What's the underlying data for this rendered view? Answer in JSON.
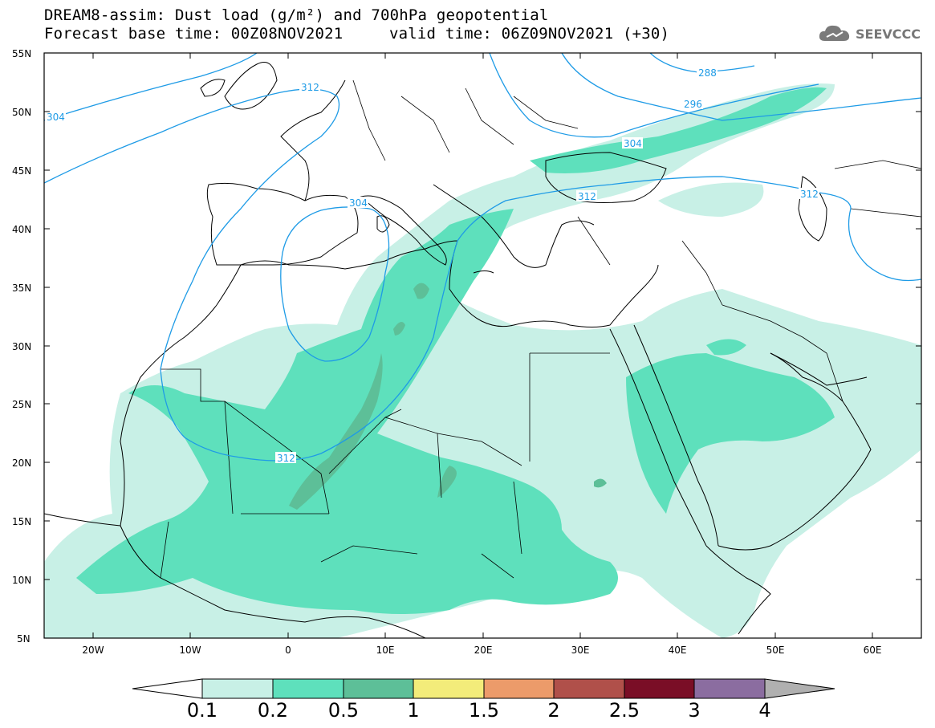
{
  "header": {
    "line1": "DREAM8-assim: Dust load (g/m²) and 700hPa geopotential",
    "line2_base": "Forecast base time: 00Z08NOV2021",
    "line2_valid": "valid time: 06Z09NOV2021 (+30)"
  },
  "logo": {
    "text": "SEEVCCC",
    "icon": "cloud-icon"
  },
  "map": {
    "region": "North Africa, Europe and Middle East",
    "lon_range": [
      -25,
      65
    ],
    "lat_range": [
      5,
      55
    ],
    "lat_ticks": [
      "55N",
      "50N",
      "45N",
      "40N",
      "35N",
      "30N",
      "25N",
      "20N",
      "15N",
      "10N",
      "5N"
    ],
    "lon_ticks": [
      "20W",
      "10W",
      "0",
      "10E",
      "20E",
      "30E",
      "40E",
      "50E",
      "60E"
    ],
    "contour_color": "#1e9be6",
    "contour_labels": [
      "304",
      "312",
      "304",
      "312",
      "288",
      "296",
      "304",
      "312",
      "312"
    ]
  },
  "colorbar": {
    "levels": [
      "0.1",
      "0.2",
      "0.5",
      "1",
      "1.5",
      "2",
      "2.5",
      "3",
      "4"
    ],
    "colors": [
      "#c8f0e6",
      "#5ee0bc",
      "#5dbf98",
      "#f3ec7a",
      "#ec9b6a",
      "#b0504a",
      "#7a0e26",
      "#8b6da0",
      "#b0b0b0"
    ]
  }
}
